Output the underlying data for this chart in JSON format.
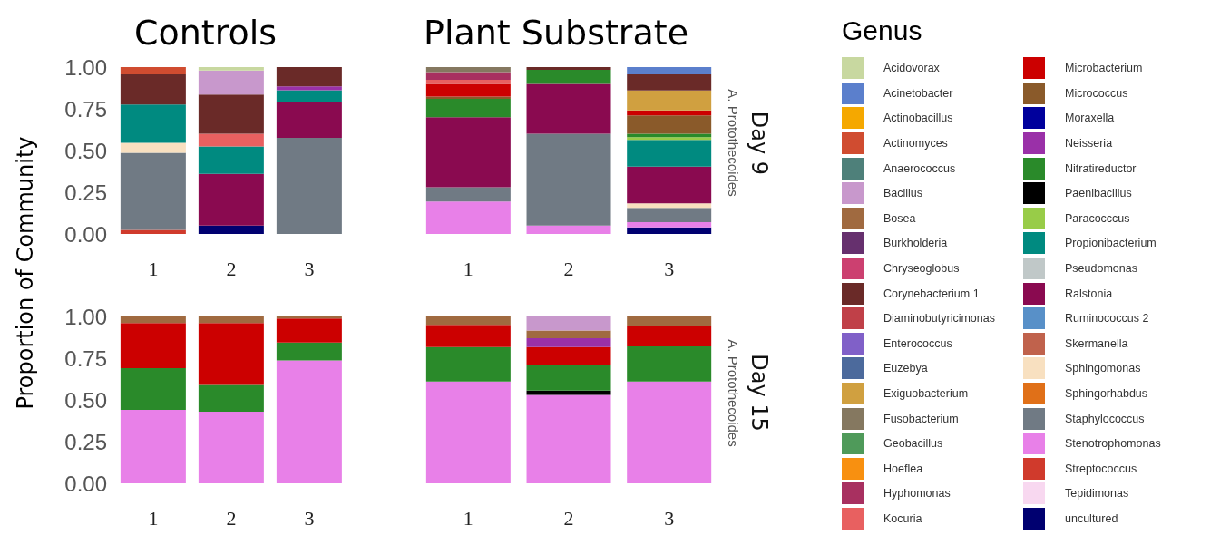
{
  "chart_data": [
    {
      "type": "bar",
      "title": "Controls",
      "ylabel": "Proportion of Community",
      "stacked": true,
      "categories": [
        "1",
        "2",
        "3"
      ],
      "ylim": [
        0,
        1
      ],
      "yticks": [
        {
          "value": 0,
          "label": "0.00"
        },
        {
          "value": 0.25,
          "label": "0.25"
        },
        {
          "value": 0.5,
          "label": "0.50"
        },
        {
          "value": 0.75,
          "label": "0.75"
        },
        {
          "value": 1,
          "label": "1.00"
        }
      ],
      "series": [
        {
          "color": "#000070",
          "values": [
            0,
            0.05,
            0
          ]
        },
        {
          "color": "#d03a2c",
          "values": [
            0.024,
            0,
            0
          ]
        },
        {
          "color": "#707a84",
          "values": [
            0.462,
            0,
            0.576
          ]
        },
        {
          "color": "#f8e0c0",
          "values": [
            0.06,
            0,
            0
          ]
        },
        {
          "color": "#8a0a50",
          "values": [
            0,
            0.31,
            0.218
          ]
        },
        {
          "color": "#008a80",
          "values": [
            0.23,
            0.164,
            0.067
          ]
        },
        {
          "color": "#9a30a8",
          "values": [
            0,
            0,
            0.024
          ]
        },
        {
          "color": "#e86060",
          "values": [
            0,
            0.076,
            0
          ]
        },
        {
          "color": "#6a2a28",
          "values": [
            0.18,
            0.236,
            0.115
          ]
        },
        {
          "color": "#c898cc",
          "values": [
            0,
            0.144,
            0
          ]
        },
        {
          "color": "#d04c30",
          "values": [
            0.044,
            0,
            0
          ]
        },
        {
          "color": "#c8d8a0",
          "values": [
            0,
            0.02,
            0
          ]
        }
      ]
    },
    {
      "type": "bar",
      "title": "Plant Substrate",
      "legend_title": "Genus",
      "legend": "right",
      "tick_labels": "x",
      "stacked": true,
      "annotations": [
        "A. Protothecoides",
        "Day 9"
      ],
      "categories": [
        "1",
        "2",
        "3"
      ],
      "ylim": [
        0,
        1
      ],
      "series": [
        {
          "name": "uncultured",
          "color": "#000070",
          "values": [
            0,
            0,
            0.04
          ]
        },
        {
          "name": "Tepidimonas",
          "color": "#f8d8f0",
          "values": [
            0,
            0,
            0
          ]
        },
        {
          "name": "Streptococcus",
          "color": "#d03a2c",
          "values": [
            0,
            0,
            0
          ]
        },
        {
          "name": "Stenotrophomonas",
          "color": "#e880e8",
          "values": [
            0.194,
            0.05,
            0.03
          ]
        },
        {
          "name": "Staphylococcus",
          "color": "#707a84",
          "values": [
            0.086,
            0.55,
            0.086
          ]
        },
        {
          "name": "Sphingorhabdus",
          "color": "#e07018",
          "values": [
            0,
            0,
            0
          ]
        },
        {
          "name": "Sphingomonas",
          "color": "#f8e0c0",
          "values": [
            0,
            0,
            0.028
          ]
        },
        {
          "name": "Skermanella",
          "color": "#c0624c",
          "values": [
            0,
            0,
            0
          ]
        },
        {
          "name": "Ruminococcus 2",
          "color": "#5890c8",
          "values": [
            0,
            0,
            0
          ]
        },
        {
          "name": "Ralstonia",
          "color": "#8a0a50",
          "values": [
            0.42,
            0.3,
            0.22
          ]
        },
        {
          "name": "Pseudomonas",
          "color": "#c0c8c8",
          "values": [
            0,
            0,
            0
          ]
        },
        {
          "name": "Propionibacterium",
          "color": "#008a80",
          "values": [
            0,
            0,
            0.16
          ]
        },
        {
          "name": "Paracocccus",
          "color": "#98cc48",
          "values": [
            0,
            0,
            0.016
          ]
        },
        {
          "name": "Paenibacillus",
          "color": "#000000",
          "values": [
            0,
            0,
            0
          ]
        },
        {
          "name": "Nitratireductor",
          "color": "#2a8a2a",
          "values": [
            0.11,
            0.084,
            0.02
          ]
        },
        {
          "name": "Neisseria",
          "color": "#9a30a8",
          "values": [
            0,
            0,
            0
          ]
        },
        {
          "name": "Moraxella",
          "color": "#00009c",
          "values": [
            0,
            0,
            0
          ]
        },
        {
          "name": "Micrococcus",
          "color": "#8a5a2a",
          "values": [
            0.014,
            0,
            0.11
          ]
        },
        {
          "name": "Microbacterium",
          "color": "#cc0000",
          "values": [
            0.076,
            0,
            0.03
          ]
        },
        {
          "name": "Kocuria",
          "color": "#e86060",
          "values": [
            0.024,
            0,
            0
          ]
        },
        {
          "name": "Hyphomonas",
          "color": "#a83060",
          "values": [
            0.046,
            0,
            0
          ]
        },
        {
          "name": "Hoeflea",
          "color": "#f89010",
          "values": [
            0,
            0,
            0
          ]
        },
        {
          "name": "Geobacillus",
          "color": "#4f9a5a",
          "values": [
            0,
            0,
            0
          ]
        },
        {
          "name": "Fusobacterium",
          "color": "#857860",
          "values": [
            0.03,
            0,
            0
          ]
        },
        {
          "name": "Exiguobacterium",
          "color": "#d0a040",
          "values": [
            0,
            0,
            0.12
          ]
        },
        {
          "name": "Euzebya",
          "color": "#4c6a9c",
          "values": [
            0,
            0,
            0
          ]
        },
        {
          "name": "Enterococcus",
          "color": "#8060c8",
          "values": [
            0,
            0,
            0
          ]
        },
        {
          "name": "Diaminobutyricimonas",
          "color": "#c04048",
          "values": [
            0,
            0,
            0
          ]
        },
        {
          "name": "Corynebacterium 1",
          "color": "#6a2a28",
          "values": [
            0,
            0.016,
            0.096
          ]
        },
        {
          "name": "Chryseoglobus",
          "color": "#cc4070",
          "values": [
            0,
            0,
            0
          ]
        },
        {
          "name": "Burkholderia",
          "color": "#66306e",
          "values": [
            0,
            0,
            0
          ]
        },
        {
          "name": "Bosea",
          "color": "#a06a40",
          "values": [
            0,
            0,
            0
          ]
        },
        {
          "name": "Bacillus",
          "color": "#c898cc",
          "values": [
            0,
            0,
            0
          ]
        },
        {
          "name": "Anaerococcus",
          "color": "#4e807a",
          "values": [
            0,
            0,
            0
          ]
        },
        {
          "name": "Actinomyces",
          "color": "#d04c30",
          "values": [
            0,
            0,
            0
          ]
        },
        {
          "name": "Actinobacillus",
          "color": "#f5a800",
          "values": [
            0,
            0,
            0
          ]
        },
        {
          "name": "Acinetobacter",
          "color": "#5b7fcc",
          "values": [
            0,
            0,
            0.044
          ]
        },
        {
          "name": "Acidovorax",
          "color": "#c8d8a0",
          "values": [
            0,
            0,
            0
          ]
        }
      ]
    },
    {
      "type": "bar",
      "stacked": true,
      "categories": [
        "1",
        "2",
        "3"
      ],
      "ylim": [
        0,
        1
      ],
      "yticks": [
        {
          "value": 0,
          "label": "0.00"
        },
        {
          "value": 0.25,
          "label": "0.25"
        },
        {
          "value": 0.5,
          "label": "0.50"
        },
        {
          "value": 0.75,
          "label": "0.75"
        },
        {
          "value": 1,
          "label": "1.00"
        }
      ],
      "series": [
        {
          "color": "#e880e8",
          "values": [
            0.44,
            0.43,
            0.736
          ]
        },
        {
          "color": "#2a8a2a",
          "values": [
            0.25,
            0.16,
            0.108
          ]
        },
        {
          "color": "#cc0000",
          "values": [
            0.27,
            0.37,
            0.144
          ]
        },
        {
          "color": "#a06a40",
          "values": [
            0.04,
            0.04,
            0.012
          ]
        }
      ]
    },
    {
      "type": "bar",
      "stacked": true,
      "tick_labels": "x",
      "annotations": [
        "A. Protothecoides",
        "Day 15"
      ],
      "categories": [
        "1",
        "2",
        "3"
      ],
      "ylim": [
        0,
        1
      ],
      "series": [
        {
          "color": "#e880e8",
          "values": [
            0.61,
            0.53,
            0.61
          ]
        },
        {
          "color": "#000000",
          "values": [
            0,
            0.026,
            0
          ]
        },
        {
          "color": "#2a8a2a",
          "values": [
            0.206,
            0.154,
            0.21
          ]
        },
        {
          "color": "#cc0000",
          "values": [
            0.134,
            0.106,
            0.12
          ]
        },
        {
          "color": "#9a30a8",
          "values": [
            0,
            0.054,
            0
          ]
        },
        {
          "color": "#a06a40",
          "values": [
            0.05,
            0.046,
            0.06
          ]
        },
        {
          "color": "#c898cc",
          "values": [
            0,
            0.084,
            0
          ]
        }
      ]
    }
  ]
}
